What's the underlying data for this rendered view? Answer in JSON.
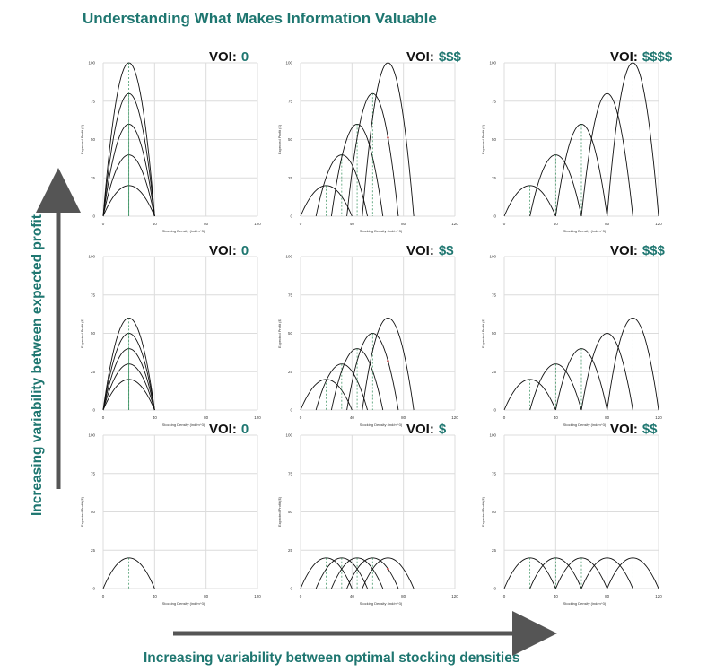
{
  "header": {
    "title": "Understanding What Makes Information Valuable"
  },
  "axes_titles": {
    "x_arrow_label": "Increasing variability between optimal stocking densities",
    "y_arrow_label": "Increasing variability between expected profit"
  },
  "colors": {
    "accent": "#1e7670",
    "curve": "#111111",
    "optimum_line": "#2e8b57",
    "intersection_marker": "#b22222",
    "grid": "#dcdcdc",
    "arrow": "#555555"
  },
  "chart_data": [
    {
      "type": "line",
      "row": 1,
      "col": 1,
      "voi_label": "VOI:",
      "voi_value": "0",
      "xlabel": "Stocking Density (ind/m^3)",
      "ylabel": "Expected Profit ($)",
      "xlim": [
        0,
        120
      ],
      "ylim": [
        0,
        100
      ],
      "xticks": [
        0,
        40,
        80,
        120
      ],
      "yticks": [
        0,
        25,
        50,
        75,
        100
      ],
      "series": [
        {
          "optimum": 20,
          "peak": 20,
          "halfwidth": 20
        },
        {
          "optimum": 20,
          "peak": 40,
          "halfwidth": 20
        },
        {
          "optimum": 20,
          "peak": 60,
          "halfwidth": 20
        },
        {
          "optimum": 20,
          "peak": 80,
          "halfwidth": 20
        },
        {
          "optimum": 20,
          "peak": 100,
          "halfwidth": 20
        }
      ]
    },
    {
      "type": "line",
      "row": 1,
      "col": 2,
      "voi_label": "VOI:",
      "voi_value": "$$$",
      "xlabel": "Stocking Density (ind/m^3)",
      "ylabel": "Expected Profit ($)",
      "xlim": [
        0,
        120
      ],
      "ylim": [
        0,
        100
      ],
      "xticks": [
        0,
        40,
        80,
        120
      ],
      "yticks": [
        0,
        25,
        50,
        75,
        100
      ],
      "series": [
        {
          "optimum": 20,
          "peak": 20,
          "halfwidth": 20
        },
        {
          "optimum": 32,
          "peak": 40,
          "halfwidth": 20
        },
        {
          "optimum": 44,
          "peak": 60,
          "halfwidth": 20
        },
        {
          "optimum": 56,
          "peak": 80,
          "halfwidth": 20
        },
        {
          "optimum": 68,
          "peak": 100,
          "halfwidth": 20
        }
      ]
    },
    {
      "type": "line",
      "row": 1,
      "col": 3,
      "voi_label": "VOI:",
      "voi_value": "$$$$",
      "xlabel": "Stocking Density (ind/m^3)",
      "ylabel": "Expected Profit ($)",
      "xlim": [
        0,
        120
      ],
      "ylim": [
        0,
        100
      ],
      "xticks": [
        0,
        40,
        80,
        120
      ],
      "yticks": [
        0,
        25,
        50,
        75,
        100
      ],
      "series": [
        {
          "optimum": 20,
          "peak": 20,
          "halfwidth": 20
        },
        {
          "optimum": 40,
          "peak": 40,
          "halfwidth": 20
        },
        {
          "optimum": 60,
          "peak": 60,
          "halfwidth": 20
        },
        {
          "optimum": 80,
          "peak": 80,
          "halfwidth": 20
        },
        {
          "optimum": 100,
          "peak": 100,
          "halfwidth": 20
        }
      ]
    },
    {
      "type": "line",
      "row": 2,
      "col": 1,
      "voi_label": "VOI:",
      "voi_value": "0",
      "xlabel": "Stocking Density (ind/m^3)",
      "ylabel": "Expected Profit ($)",
      "xlim": [
        0,
        120
      ],
      "ylim": [
        0,
        100
      ],
      "xticks": [
        0,
        40,
        80,
        120
      ],
      "yticks": [
        0,
        25,
        50,
        75,
        100
      ],
      "series": [
        {
          "optimum": 20,
          "peak": 20,
          "halfwidth": 20
        },
        {
          "optimum": 20,
          "peak": 30,
          "halfwidth": 20
        },
        {
          "optimum": 20,
          "peak": 40,
          "halfwidth": 20
        },
        {
          "optimum": 20,
          "peak": 50,
          "halfwidth": 20
        },
        {
          "optimum": 20,
          "peak": 60,
          "halfwidth": 20
        }
      ]
    },
    {
      "type": "line",
      "row": 2,
      "col": 2,
      "voi_label": "VOI:",
      "voi_value": "$$",
      "xlabel": "Stocking Density (ind/m^3)",
      "ylabel": "Expected Profit ($)",
      "xlim": [
        0,
        120
      ],
      "ylim": [
        0,
        100
      ],
      "xticks": [
        0,
        40,
        80,
        120
      ],
      "yticks": [
        0,
        25,
        50,
        75,
        100
      ],
      "series": [
        {
          "optimum": 20,
          "peak": 20,
          "halfwidth": 20
        },
        {
          "optimum": 32,
          "peak": 30,
          "halfwidth": 20
        },
        {
          "optimum": 44,
          "peak": 40,
          "halfwidth": 20
        },
        {
          "optimum": 56,
          "peak": 50,
          "halfwidth": 20
        },
        {
          "optimum": 68,
          "peak": 60,
          "halfwidth": 20
        }
      ]
    },
    {
      "type": "line",
      "row": 2,
      "col": 3,
      "voi_label": "VOI:",
      "voi_value": "$$$",
      "xlabel": "Stocking Density (ind/m^3)",
      "ylabel": "Expected Profit ($)",
      "xlim": [
        0,
        120
      ],
      "ylim": [
        0,
        100
      ],
      "xticks": [
        0,
        40,
        80,
        120
      ],
      "yticks": [
        0,
        25,
        50,
        75,
        100
      ],
      "series": [
        {
          "optimum": 20,
          "peak": 20,
          "halfwidth": 20
        },
        {
          "optimum": 40,
          "peak": 30,
          "halfwidth": 20
        },
        {
          "optimum": 60,
          "peak": 40,
          "halfwidth": 20
        },
        {
          "optimum": 80,
          "peak": 50,
          "halfwidth": 20
        },
        {
          "optimum": 100,
          "peak": 60,
          "halfwidth": 20
        }
      ]
    },
    {
      "type": "line",
      "row": 3,
      "col": 1,
      "voi_label": "VOI:",
      "voi_value": "0",
      "xlabel": "Stocking Density (ind/m^3)",
      "ylabel": "Expected Profit ($)",
      "xlim": [
        0,
        120
      ],
      "ylim": [
        0,
        100
      ],
      "xticks": [
        0,
        40,
        80,
        120
      ],
      "yticks": [
        0,
        25,
        50,
        75,
        100
      ],
      "series": [
        {
          "optimum": 20,
          "peak": 20,
          "halfwidth": 20
        }
      ]
    },
    {
      "type": "line",
      "row": 3,
      "col": 2,
      "voi_label": "VOI:",
      "voi_value": "$",
      "xlabel": "Stocking Density (ind/m^3)",
      "ylabel": "Expected Profit ($)",
      "xlim": [
        0,
        120
      ],
      "ylim": [
        0,
        100
      ],
      "xticks": [
        0,
        40,
        80,
        120
      ],
      "yticks": [
        0,
        25,
        50,
        75,
        100
      ],
      "series": [
        {
          "optimum": 20,
          "peak": 20,
          "halfwidth": 20
        },
        {
          "optimum": 32,
          "peak": 20,
          "halfwidth": 20
        },
        {
          "optimum": 44,
          "peak": 20,
          "halfwidth": 20
        },
        {
          "optimum": 56,
          "peak": 20,
          "halfwidth": 20
        },
        {
          "optimum": 68,
          "peak": 20,
          "halfwidth": 20
        }
      ]
    },
    {
      "type": "line",
      "row": 3,
      "col": 3,
      "voi_label": "VOI:",
      "voi_value": "$$",
      "xlabel": "Stocking Density (ind/m^3)",
      "ylabel": "Expected Profit ($)",
      "xlim": [
        0,
        120
      ],
      "ylim": [
        0,
        100
      ],
      "xticks": [
        0,
        40,
        80,
        120
      ],
      "yticks": [
        0,
        25,
        50,
        75,
        100
      ],
      "series": [
        {
          "optimum": 20,
          "peak": 20,
          "halfwidth": 20
        },
        {
          "optimum": 40,
          "peak": 20,
          "halfwidth": 20
        },
        {
          "optimum": 60,
          "peak": 20,
          "halfwidth": 20
        },
        {
          "optimum": 80,
          "peak": 20,
          "halfwidth": 20
        },
        {
          "optimum": 100,
          "peak": 20,
          "halfwidth": 20
        }
      ]
    }
  ]
}
